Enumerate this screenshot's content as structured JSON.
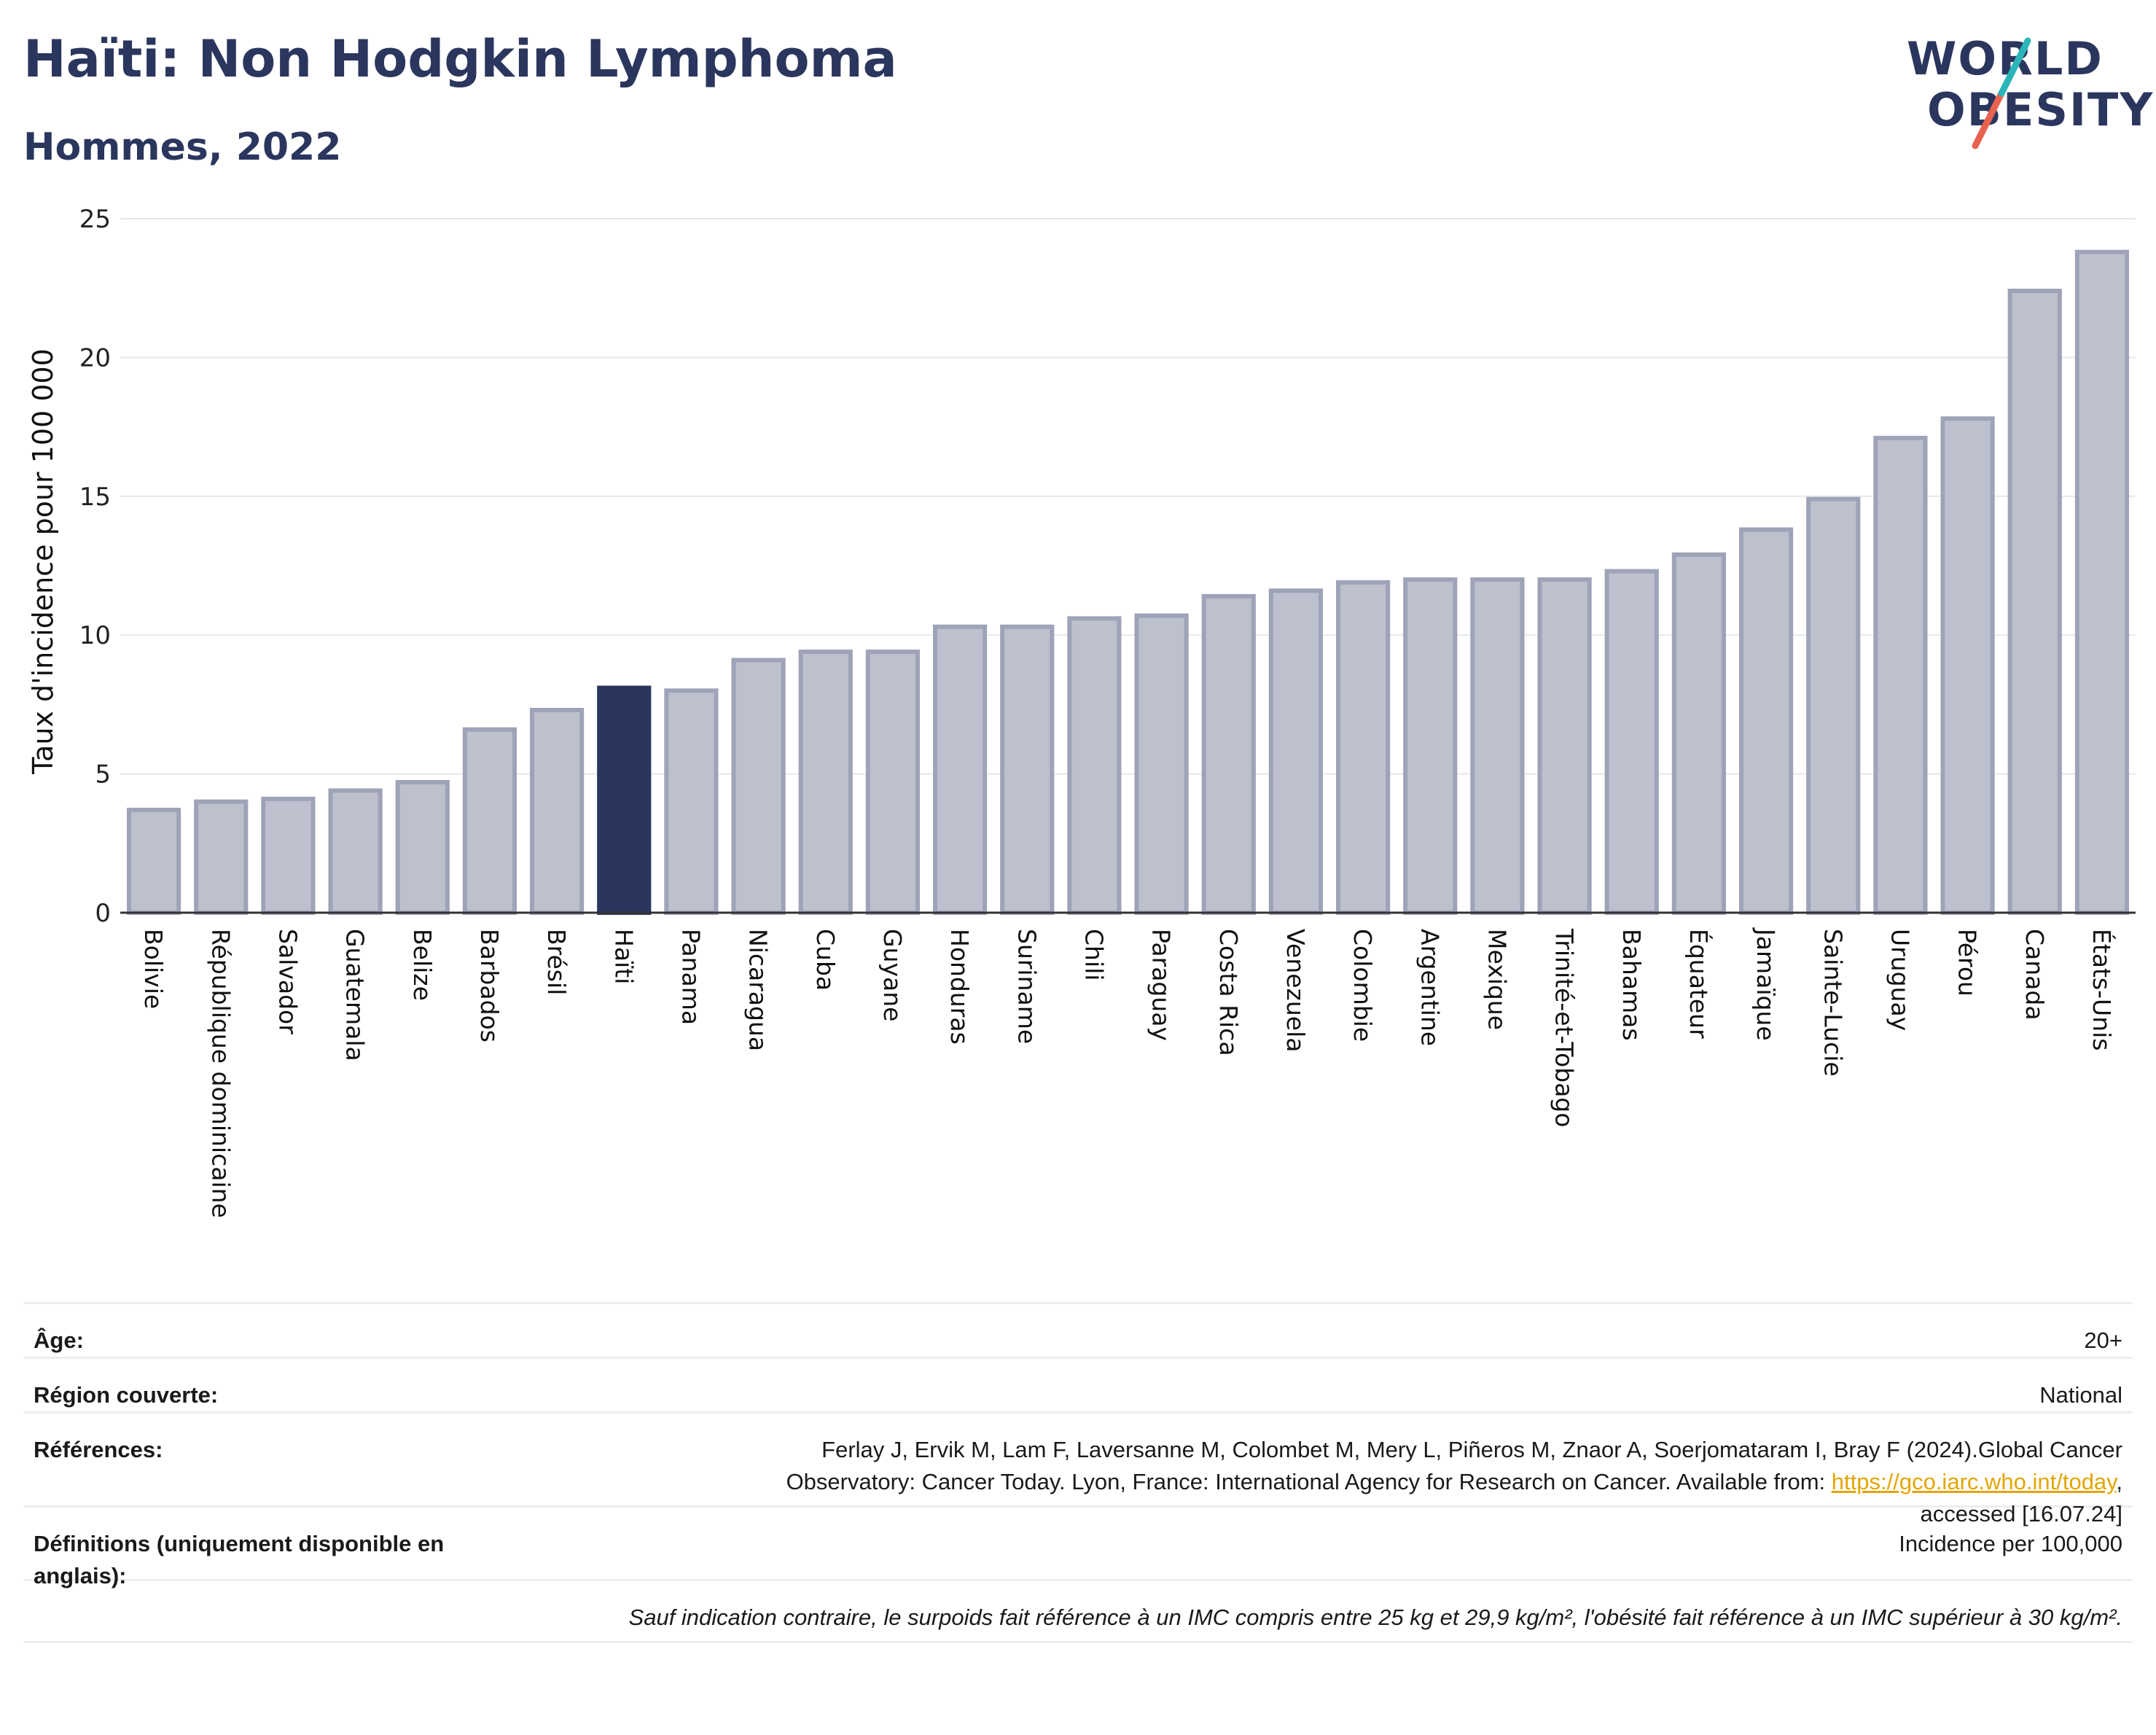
{
  "header": {
    "title": "Haïti: Non Hodgkin Lymphoma",
    "subtitle": "Hommes, 2022"
  },
  "logo": {
    "line1": "WORLD",
    "line2": "OBESITY"
  },
  "colors": {
    "highlight": "#2b365e",
    "bar": "#bdc0cd",
    "bar_border": "#9ea3b8",
    "link": "#e3a500",
    "logo_teal": "#2bb5b8",
    "logo_red": "#e8624f"
  },
  "chart_data": {
    "type": "bar",
    "ylabel": "Taux d'incidence pour 100 000",
    "xlabel": "",
    "ylim": [
      0,
      25
    ],
    "yticks": [
      "0",
      "5",
      "10",
      "15",
      "20",
      "25"
    ],
    "highlight": "Haïti",
    "grid": true,
    "categories": [
      "Bolivie",
      "République dominicaine",
      "Salvador",
      "Guatemala",
      "Belize",
      "Barbados",
      "Brésil",
      "Haïti",
      "Panama",
      "Nicaragua",
      "Cuba",
      "Guyane",
      "Honduras",
      "Suriname",
      "Chili",
      "Paraguay",
      "Costa Rica",
      "Venezuela",
      "Colombie",
      "Argentine",
      "Mexique",
      "Trinité-et-Tobago",
      "Bahamas",
      "Équateur",
      "Jamaïque",
      "Sainte-Lucie",
      "Uruguay",
      "Pérou",
      "Canada",
      "États-Unis"
    ],
    "values": [
      3.7,
      4.0,
      4.1,
      4.4,
      4.7,
      6.6,
      7.3,
      8.1,
      8.0,
      9.1,
      9.4,
      9.4,
      10.3,
      10.3,
      10.6,
      10.7,
      11.4,
      11.6,
      11.9,
      12.0,
      12.0,
      12.0,
      12.3,
      12.9,
      13.8,
      14.9,
      17.1,
      17.8,
      22.4,
      23.8
    ]
  },
  "info": {
    "rows": [
      {
        "key": "Âge:",
        "value": "20+"
      },
      {
        "key": "Région couverte:",
        "value": "National"
      },
      {
        "key": "Références:",
        "value_line1": "Ferlay J, Ervik M, Lam F, Laversanne M, Colombet M, Mery L, Piñeros M, Znaor A, Soerjomataram I, Bray F (2024).Global Cancer",
        "value_line2": "Observatory: Cancer Today. Lyon, France: International Agency for Research on Cancer. Available from: ",
        "link": "https://gco.iarc.who.int/today",
        "after_link": ",",
        "value_line3": "accessed [16.07.24]"
      },
      {
        "key": "Définitions (uniquement disponible en anglais):",
        "value": "Incidence per 100,000"
      }
    ],
    "note": "Sauf indication contraire, le surpoids fait référence à un IMC compris entre 25 kg et 29,9 kg/m², l'obésité fait référence à un IMC supérieur à 30 kg/m²."
  }
}
